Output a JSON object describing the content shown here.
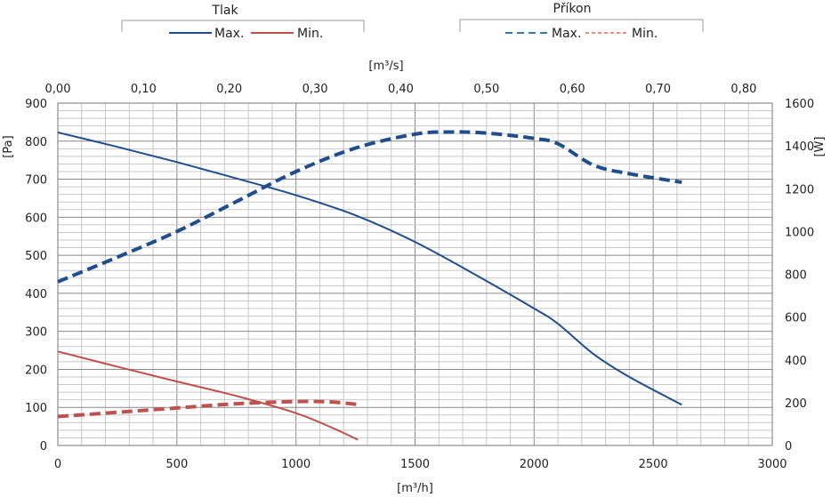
{
  "chart_data": {
    "type": "line",
    "legend_groups": [
      {
        "title": "Tlak",
        "entries": [
          {
            "label": "Max.",
            "color": "#1f4e8c",
            "style": "solid"
          },
          {
            "label": "Min.",
            "color": "#c0504d",
            "style": "solid"
          }
        ]
      },
      {
        "title": "Příkon",
        "entries": [
          {
            "label": "Max.",
            "color": "#2e7da8",
            "style": "dashed"
          },
          {
            "label": "Min.",
            "color": "#f08b7c",
            "style": "dashed"
          }
        ]
      }
    ],
    "x_bottom": {
      "label": "[m³/h]",
      "range": [
        0,
        3000
      ],
      "ticks": [
        0,
        500,
        1000,
        1500,
        2000,
        2500,
        3000
      ]
    },
    "x_top": {
      "label": "[m³/s]",
      "range": [
        0,
        0.8333
      ],
      "ticks": [
        "0,00",
        "0,10",
        "0,20",
        "0,30",
        "0,40",
        "0,50",
        "0,60",
        "0,70",
        "0,80"
      ]
    },
    "y_left": {
      "label": "[Pa]",
      "range": [
        0,
        900
      ],
      "ticks": [
        0,
        100,
        200,
        300,
        400,
        500,
        600,
        700,
        800,
        900
      ]
    },
    "y_right": {
      "label": "[W]",
      "range": [
        0,
        1600
      ],
      "ticks": [
        0,
        200,
        400,
        600,
        800,
        1000,
        1200,
        1400,
        1600
      ]
    },
    "grid": true,
    "series": [
      {
        "name": "Max.",
        "group": "Tlak",
        "axis": "left",
        "color": "#1f4e8c",
        "dashed": false,
        "x": [
          0,
          250,
          500,
          750,
          1000,
          1250,
          1500,
          1750,
          2000,
          2100,
          2250,
          2400,
          2620
        ],
        "y": [
          823,
          785,
          745,
          702,
          658,
          605,
          535,
          450,
          360,
          320,
          240,
          180,
          107
        ]
      },
      {
        "name": "Min.",
        "group": "Tlak",
        "axis": "left",
        "color": "#c0504d",
        "dashed": false,
        "x": [
          0,
          250,
          500,
          750,
          1000,
          1150,
          1260
        ],
        "y": [
          247,
          207,
          168,
          130,
          85,
          47,
          15
        ]
      },
      {
        "name": "Max.",
        "group": "Příkon",
        "axis": "right",
        "color": "#1f4e8c",
        "dashed": true,
        "x": [
          0,
          250,
          500,
          750,
          1000,
          1250,
          1500,
          1650,
          1800,
          2000,
          2100,
          2250,
          2400,
          2620
        ],
        "y": [
          765,
          880,
          1000,
          1140,
          1280,
          1390,
          1455,
          1465,
          1460,
          1435,
          1410,
          1310,
          1270,
          1230
        ]
      },
      {
        "name": "Min.",
        "group": "Příkon",
        "axis": "right",
        "color": "#c0504d",
        "dashed": true,
        "x": [
          0,
          250,
          500,
          750,
          1000,
          1150,
          1270
        ],
        "y": [
          135,
          155,
          175,
          195,
          205,
          203,
          190
        ]
      }
    ]
  }
}
